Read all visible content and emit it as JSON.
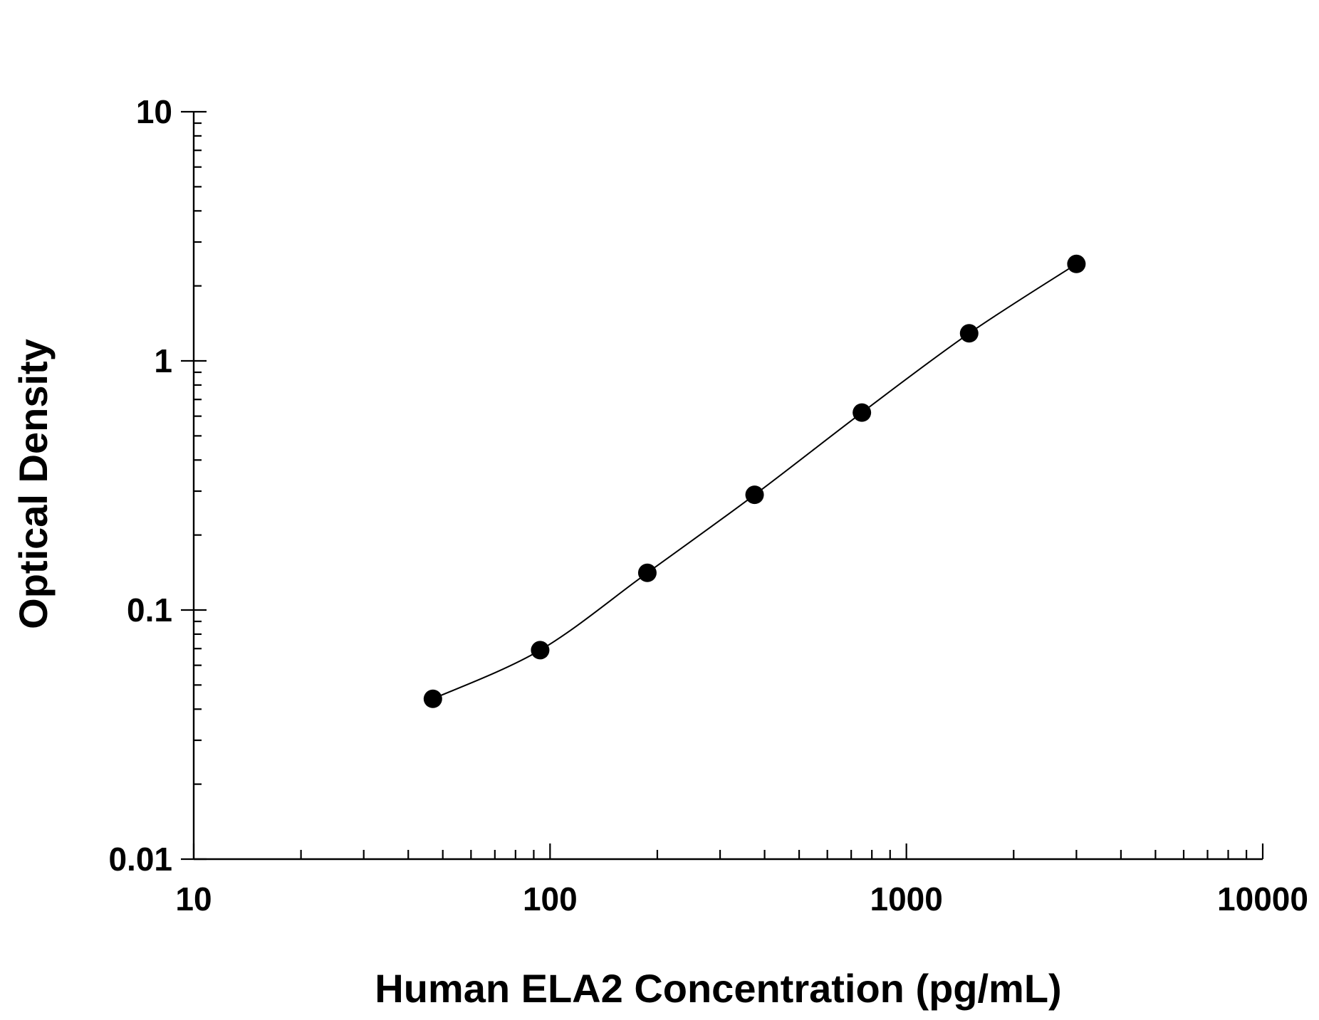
{
  "chart_data": {
    "type": "scatter",
    "x_scale": "log",
    "y_scale": "log",
    "xlabel": "Human ELA2 Concentration (pg/mL)",
    "ylabel": "Optical Density",
    "xlim": [
      10,
      10000
    ],
    "ylim": [
      0.01,
      10
    ],
    "x_ticks": [
      10,
      100,
      1000,
      10000
    ],
    "x_tick_labels": [
      "10",
      "100",
      "1000",
      "10000"
    ],
    "y_ticks": [
      0.01,
      0.1,
      1,
      10
    ],
    "y_tick_labels": [
      "0.01",
      "0.1",
      "1",
      "10"
    ],
    "grid": false,
    "legend": "none",
    "fit_line": true,
    "series": [
      {
        "x": [
          46.9,
          93.8,
          187.5,
          375,
          750,
          1500,
          3000
        ],
        "y": [
          0.044,
          0.069,
          0.141,
          0.29,
          0.62,
          1.29,
          2.45
        ]
      }
    ],
    "colors": {
      "marker": "#000000",
      "line": "#000000",
      "axis": "#000000"
    }
  }
}
